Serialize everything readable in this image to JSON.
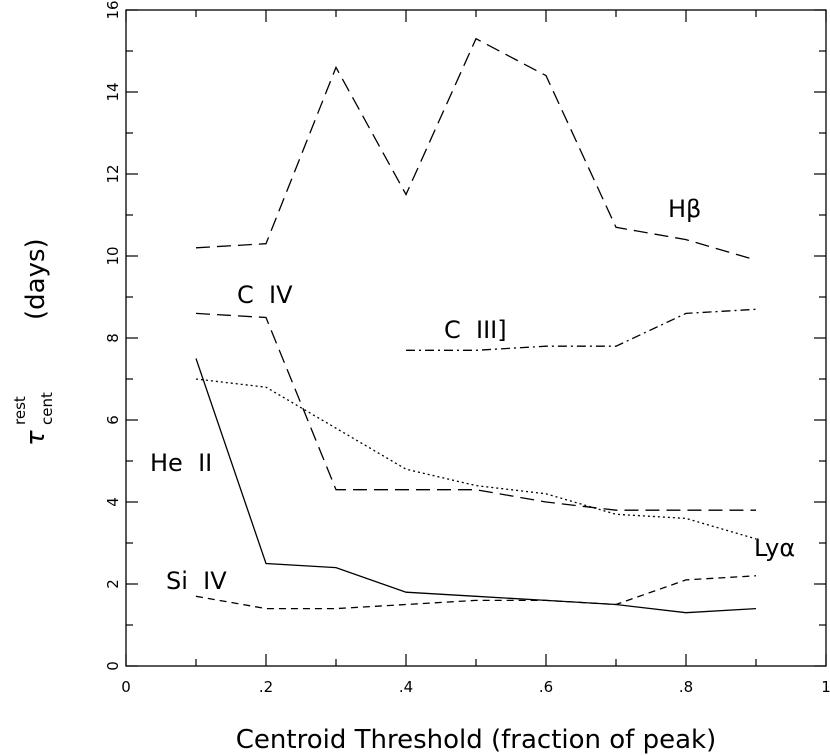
{
  "chart_data": {
    "type": "line",
    "title": "",
    "xlabel": "Centroid Threshold (fraction of peak)",
    "ylabel": "τ^rest_cent (days)",
    "ylabel_parts": {
      "symbol": "τ",
      "superscript": "rest",
      "subscript": "cent",
      "units": "(days)"
    },
    "xlim": [
      0,
      1
    ],
    "ylim": [
      0,
      16
    ],
    "x_ticks": [
      0,
      0.2,
      0.4,
      0.6,
      0.8,
      1
    ],
    "x_tick_labels": [
      "0",
      ".2",
      ".4",
      ".6",
      ".8",
      "1"
    ],
    "y_ticks": [
      0,
      2,
      4,
      6,
      8,
      10,
      12,
      14,
      16
    ],
    "y_tick_labels": [
      "0",
      "2",
      "4",
      "6",
      "8",
      "10",
      "12",
      "14",
      "16"
    ],
    "grid": false,
    "series": [
      {
        "name": "Hβ",
        "style": "long-dash",
        "x": [
          0.1,
          0.2,
          0.3,
          0.4,
          0.5,
          0.6,
          0.7,
          0.8,
          0.9
        ],
        "y": [
          10.2,
          10.3,
          14.6,
          11.5,
          15.3,
          14.4,
          10.7,
          10.4,
          9.9
        ]
      },
      {
        "name": "C IV",
        "style": "long-dash",
        "x": [
          0.1,
          0.2,
          0.3,
          0.4,
          0.5,
          0.6,
          0.7,
          0.8,
          0.9
        ],
        "y": [
          8.6,
          8.5,
          4.3,
          4.3,
          4.3,
          4.0,
          3.8,
          3.8,
          3.8
        ]
      },
      {
        "name": "C III]",
        "style": "dash-dot",
        "x": [
          0.4,
          0.5,
          0.6,
          0.7,
          0.8,
          0.9
        ],
        "y": [
          7.7,
          7.7,
          7.8,
          7.8,
          8.6,
          8.7
        ]
      },
      {
        "name": "Lyα",
        "style": "dotted",
        "x": [
          0.1,
          0.2,
          0.3,
          0.4,
          0.5,
          0.6,
          0.7,
          0.8,
          0.9
        ],
        "y": [
          7.0,
          6.8,
          5.8,
          4.8,
          4.4,
          4.2,
          3.7,
          3.6,
          3.1
        ]
      },
      {
        "name": "He II",
        "style": "solid",
        "x": [
          0.1,
          0.2,
          0.3,
          0.4,
          0.5,
          0.6,
          0.7,
          0.8,
          0.9
        ],
        "y": [
          7.5,
          2.5,
          2.4,
          1.8,
          1.7,
          1.6,
          1.5,
          1.3,
          1.4
        ]
      },
      {
        "name": "Si IV",
        "style": "short-dash",
        "x": [
          0.1,
          0.2,
          0.3,
          0.4,
          0.5,
          0.6,
          0.7,
          0.8,
          0.9
        ],
        "y": [
          1.7,
          1.4,
          1.4,
          1.5,
          1.6,
          1.6,
          1.5,
          2.1,
          2.2
        ]
      }
    ]
  }
}
